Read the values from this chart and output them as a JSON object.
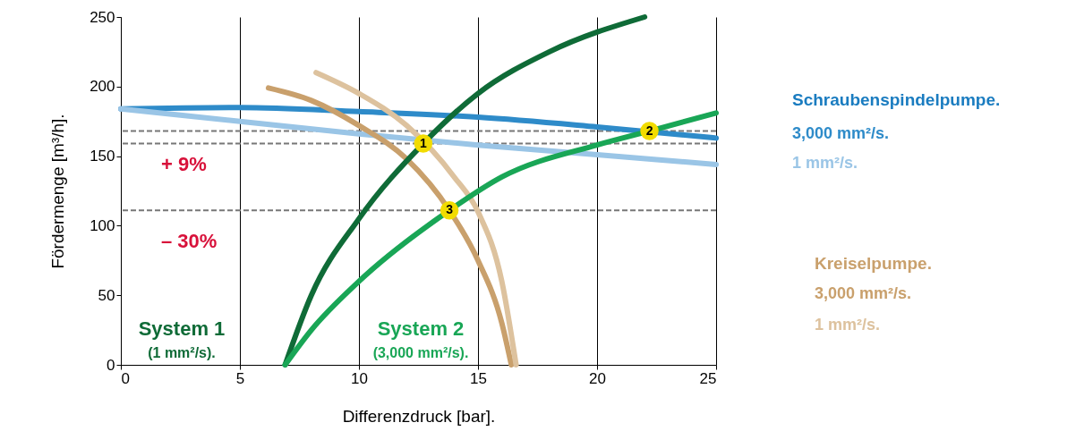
{
  "chart_data": {
    "type": "line",
    "xlabel": "Differenzdruck [bar].",
    "ylabel": "Fördermenge [m³/h].",
    "xlim": [
      0,
      25
    ],
    "xticks": [
      0,
      5,
      10,
      15,
      20,
      25
    ],
    "ylim": [
      0,
      250
    ],
    "yticks": [
      0,
      50,
      100,
      150,
      200,
      250
    ],
    "grid": "x",
    "marker": "none",
    "line_style": "solid",
    "series": [
      {
        "name": "3,000 mm²/s.",
        "color": "#2e8bc9",
        "x": [
          0,
          5,
          10,
          15,
          20,
          25
        ],
        "values": [
          184,
          185,
          182,
          178,
          171,
          163
        ]
      },
      {
        "name": "1 mm²/s.",
        "color": "#9ac5e6",
        "x": [
          0,
          5,
          10,
          15,
          20,
          25
        ],
        "values": [
          184,
          175,
          166,
          158,
          151,
          144
        ]
      },
      {
        "name": "3,000 mm²/s.",
        "color": "#c9a06c",
        "x": [
          6.2,
          8,
          10,
          12,
          13.8,
          15,
          16,
          16.4
        ],
        "values": [
          199,
          190,
          172,
          148,
          111,
          75,
          30,
          0
        ]
      },
      {
        "name": "1 mm²/s.",
        "color": "#ddc29e",
        "x": [
          8.2,
          10,
          12,
          14,
          15,
          16,
          16.6
        ],
        "values": [
          210,
          195,
          172,
          135,
          110,
          60,
          0
        ]
      },
      {
        "name": "System 1",
        "color": "#0f6b37",
        "x": [
          6.9,
          8,
          10,
          12.7,
          15,
          18,
          22
        ],
        "values": [
          0,
          50,
          105,
          159,
          195,
          225,
          250
        ]
      },
      {
        "name": "System 2",
        "color": "#19a656",
        "x": [
          6.9,
          8,
          10,
          13.8,
          16,
          20,
          22.2,
          25
        ],
        "values": [
          0,
          25,
          60,
          111,
          135,
          158,
          168,
          181
        ]
      }
    ],
    "ref_lines": [
      {
        "axis": "y",
        "value": 168,
        "line_style": "dashed",
        "color": "#777777"
      },
      {
        "axis": "y",
        "value": 159,
        "line_style": "dashed",
        "color": "#777777"
      },
      {
        "axis": "y",
        "value": 111,
        "line_style": "dashed",
        "color": "#777777"
      }
    ],
    "annotations": [
      {
        "text": "1",
        "x": 12.7,
        "y": 159
      },
      {
        "text": "2",
        "x": 22.2,
        "y": 168
      },
      {
        "text": "3",
        "x": 13.8,
        "y": 111
      },
      "+ 9%",
      "– 30%",
      "Schraubenspindelpumpe.",
      "Kreiselpumpe.",
      "(1 mm²/s).",
      "(3,000 mm²/s)."
    ]
  }
}
